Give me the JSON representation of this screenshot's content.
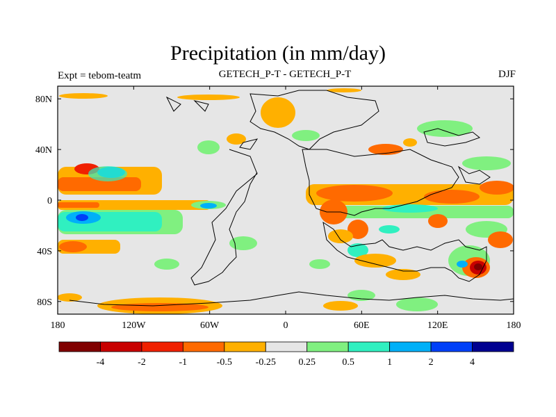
{
  "header": {
    "title": "Precipitation (in mm/day)",
    "experiment": "Expt = tebom-teatm",
    "subtitle": "GETECH_P-T - GETECH_P-T",
    "season": "DJF"
  },
  "map": {
    "lon_range": [
      -180,
      180
    ],
    "lat_range": [
      -90,
      90
    ],
    "x_ticks": [
      {
        "lon": -180,
        "label": "180"
      },
      {
        "lon": -120,
        "label": "120W"
      },
      {
        "lon": -60,
        "label": "60W"
      },
      {
        "lon": 0,
        "label": "0"
      },
      {
        "lon": 60,
        "label": "60E"
      },
      {
        "lon": 120,
        "label": "120E"
      },
      {
        "lon": 180,
        "label": "180"
      }
    ],
    "y_ticks": [
      {
        "lat": 80,
        "label": "80N"
      },
      {
        "lat": 40,
        "label": "40N"
      },
      {
        "lat": 0,
        "label": "0"
      },
      {
        "lat": -40,
        "label": "40S"
      },
      {
        "lat": -80,
        "label": "80S"
      }
    ]
  },
  "colorbar": {
    "colors": [
      "#800000",
      "#c80000",
      "#f02000",
      "#ff6a00",
      "#ffb000",
      "#e6e6e6",
      "#80f080",
      "#30f0c0",
      "#00b0f8",
      "#0040f8",
      "#000090"
    ],
    "labels": [
      "-4",
      "-2",
      "-1",
      "-0.5",
      "-0.25",
      "0.25",
      "0.5",
      "1",
      "2",
      "4"
    ]
  }
}
